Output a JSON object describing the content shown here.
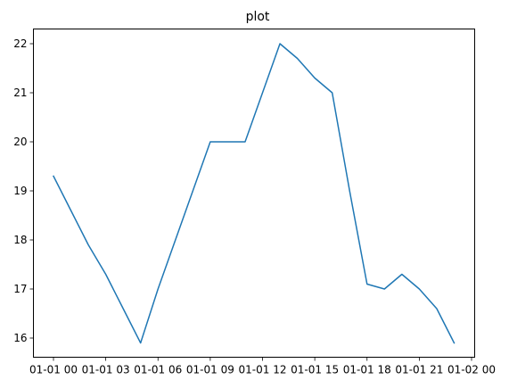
{
  "chart_data": {
    "type": "line",
    "title": "plot",
    "xlabel": "",
    "ylabel": "",
    "x_tick_labels": [
      "01-01 00",
      "01-01 03",
      "01-01 06",
      "01-01 09",
      "01-01 12",
      "01-01 15",
      "01-01 18",
      "01-01 21",
      "01-02 00"
    ],
    "y_tick_labels": [
      "16",
      "17",
      "18",
      "19",
      "20",
      "21",
      "22"
    ],
    "x_range": [
      "2000-01-01 00:00",
      "2000-01-02 00:00"
    ],
    "ylim": [
      15.6,
      22.3
    ],
    "grid": false,
    "legend": "none",
    "series": [
      {
        "color": "#1f77b4",
        "x": [
          "2000-01-01 00:00",
          "2000-01-01 01:00",
          "2000-01-01 02:00",
          "2000-01-01 03:00",
          "2000-01-01 04:00",
          "2000-01-01 05:00",
          "2000-01-01 06:00",
          "2000-01-01 07:00",
          "2000-01-01 08:00",
          "2000-01-01 09:00",
          "2000-01-01 10:00",
          "2000-01-01 11:00",
          "2000-01-01 12:00",
          "2000-01-01 13:00",
          "2000-01-01 14:00",
          "2000-01-01 15:00",
          "2000-01-01 16:00",
          "2000-01-01 17:00",
          "2000-01-01 18:00",
          "2000-01-01 19:00",
          "2000-01-01 20:00",
          "2000-01-01 21:00",
          "2000-01-01 22:00",
          "2000-01-01 23:00"
        ],
        "y": [
          19.3,
          18.6,
          17.9,
          17.3,
          16.6,
          15.9,
          17.0,
          18.0,
          19.0,
          20.0,
          20.0,
          20.0,
          21.0,
          22.0,
          21.7,
          21.3,
          21.0,
          19.0,
          17.1,
          17.0,
          17.3,
          17.0,
          16.6,
          15.9
        ]
      }
    ]
  }
}
